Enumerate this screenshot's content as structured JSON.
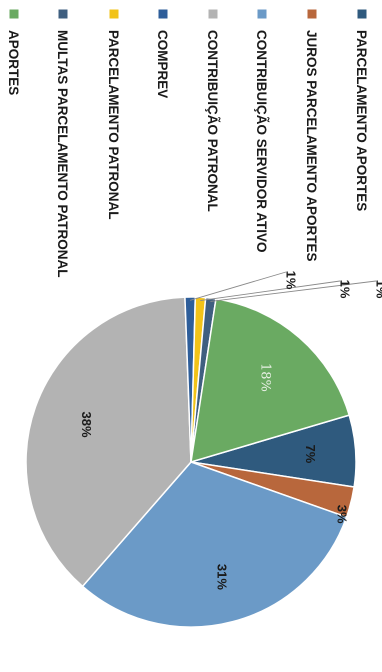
{
  "chart_data": {
    "type": "pie",
    "legend_position": "top",
    "slices": [
      {
        "name": "PARCELAMENTO APORTES",
        "value": 7,
        "label": "7%",
        "color": "#2f5a7e"
      },
      {
        "name": "JUROS PARCELAMENTO APORTES",
        "value": 3,
        "label": "3%",
        "color": "#b8673c"
      },
      {
        "name": "CONTRIBUIÇÃO SERVIDOR ATIVO",
        "value": 31,
        "label": "31%",
        "color": "#6b9ac7"
      },
      {
        "name": "CONTRIBUIÇÃO PATRONAL",
        "value": 38,
        "label": "38%",
        "color": "#b3b3b3"
      },
      {
        "name": "COMPREV",
        "value": 1,
        "label": "1%",
        "color": "#2e5e9a"
      },
      {
        "name": "PARCELAMENTO PATRONAL",
        "value": 1,
        "label": "1%",
        "color": "#f2c319"
      },
      {
        "name": "MULTAS PARCELAMENTO PATRONAL",
        "value": 1,
        "label": "1%",
        "color": "#3f5f80"
      },
      {
        "name": "APORTES",
        "value": 18,
        "label": "18%",
        "color": "#6aaa62"
      }
    ]
  }
}
